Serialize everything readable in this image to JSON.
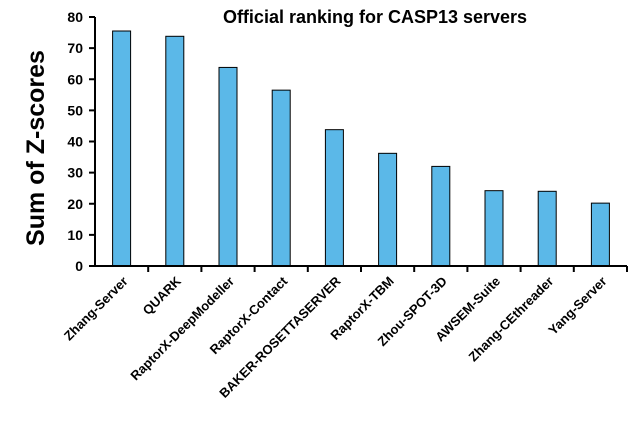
{
  "chart_data": {
    "type": "bar",
    "title": "Official ranking for CASP13 servers",
    "xlabel": "",
    "ylabel": "Sum of Z-scores",
    "ylim": [
      0,
      80
    ],
    "yticks": [
      0,
      10,
      20,
      30,
      40,
      50,
      60,
      70,
      80
    ],
    "categories": [
      "Zhang-Server",
      "QUARK",
      "RaptorX-DeepModeller",
      "RaptorX-Contact",
      "BAKER-ROSETTASERVER",
      "RaptorX-TBM",
      "Zhou-SPOT-3D",
      "AWSEM-Suite",
      "Zhang-CEthreader",
      "Yang-Server"
    ],
    "values": [
      75.5,
      73.8,
      63.8,
      56.5,
      43.8,
      36.2,
      32.0,
      24.2,
      24.0,
      20.2
    ],
    "bar_color": "#5bb8e8",
    "bar_outline": "#000000",
    "grid": false,
    "legend": "none"
  }
}
